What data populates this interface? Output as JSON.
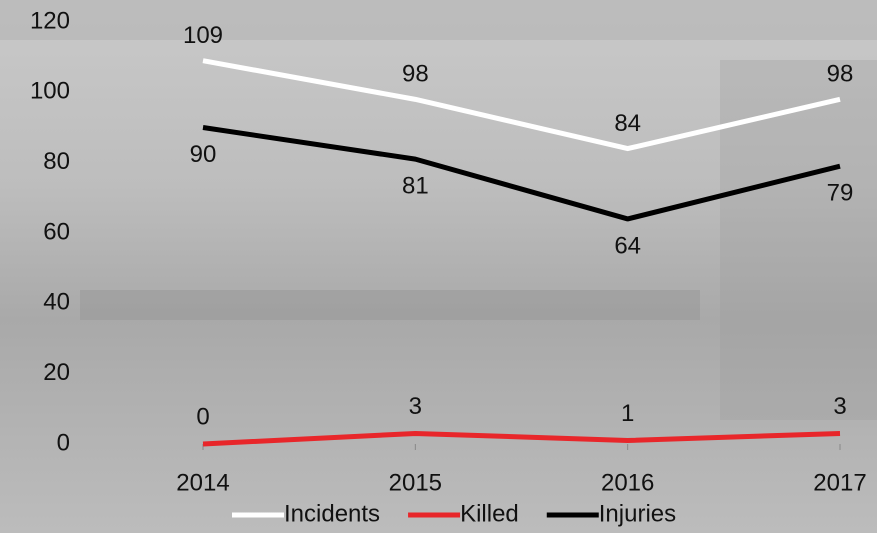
{
  "chart_data": {
    "type": "line",
    "categories": [
      "2014",
      "2015",
      "2016",
      "2017"
    ],
    "series": [
      {
        "name": "Incidents",
        "color": "#ffffff",
        "values": [
          109,
          98,
          84,
          98
        ]
      },
      {
        "name": "Killed",
        "color": "#e8262a",
        "values": [
          0,
          3,
          1,
          3
        ]
      },
      {
        "name": "Injuries",
        "color": "#000000",
        "values": [
          90,
          81,
          64,
          79
        ]
      }
    ],
    "ylim": [
      0,
      120
    ],
    "yticks": [
      0,
      20,
      40,
      60,
      80,
      100,
      120
    ],
    "legend": "bottom"
  }
}
